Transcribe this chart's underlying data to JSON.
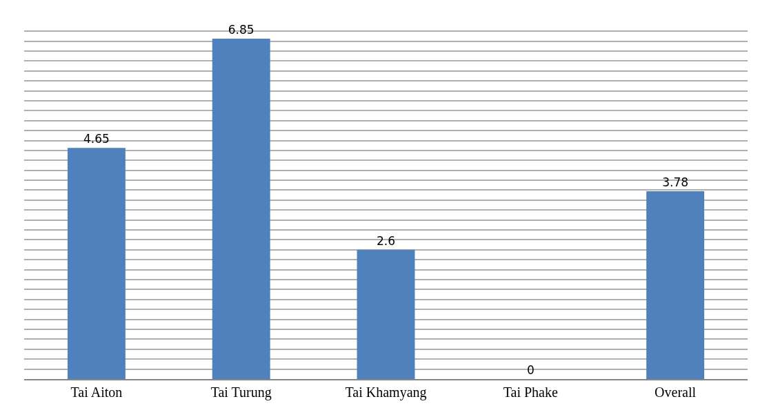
{
  "chart_data": {
    "type": "bar",
    "categories": [
      "Tai Aiton",
      "Tai Turung",
      "Tai Khamyang",
      "Tai Phake",
      "Overall"
    ],
    "values": [
      4.65,
      6.85,
      2.6,
      0,
      3.78
    ],
    "color": "#4f81bd",
    "data_labels": true,
    "grid": "y",
    "tick_labels": "x"
  }
}
